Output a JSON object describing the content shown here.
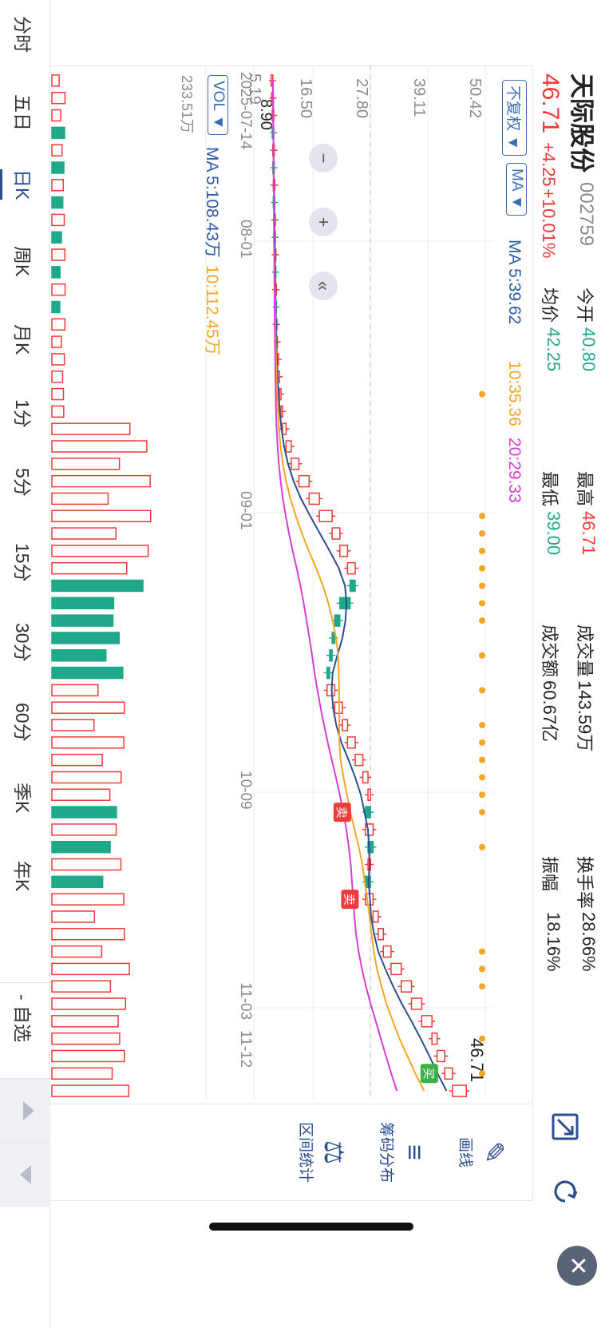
{
  "stock": {
    "name": "天际股份",
    "code": "002759",
    "price": "46.71",
    "change": "+4.25",
    "change_pct": "+10.01%"
  },
  "quote": {
    "open_label": "今开",
    "open_value": "40.80",
    "high_label": "最高",
    "high_value": "46.71",
    "volume_label": "成交量",
    "volume_value": "143.59万",
    "turnover_label": "换手率",
    "turnover_value": "28.66%",
    "avg_label": "均价",
    "avg_value": "42.25",
    "low_label": "最低",
    "low_value": "39.00",
    "amount_label": "成交额",
    "amount_value": "60.67亿",
    "amplitude_label": "振幅",
    "amplitude_value": "18.16%"
  },
  "toolbar": {
    "adjust_label": "不复权 ▼",
    "indicator_label": "MA ▼",
    "ma5": "MA 5:39.62",
    "ma10": "10:35.36",
    "ma20": "20:29.33"
  },
  "price_axis": {
    "top": "50.42",
    "l2": "39.11",
    "l3": "27.80",
    "l4": "16.50",
    "bottom": "5.19",
    "min_label": "8.90",
    "last_label": "46.71"
  },
  "date_axis": [
    "2025-07-14",
    "08-01",
    "09-01",
    "10-09",
    "11-03",
    "11-12"
  ],
  "volume_panel": {
    "indicator_label": "VOL ▼",
    "ma5": "MA 5:108.43万",
    "ma10": "10:112.45万",
    "max_label": "233.51万"
  },
  "markers": {
    "buy": "买",
    "sell": "卖"
  },
  "period_tabs": [
    "分时",
    "五日",
    "日K",
    "周K",
    "月K",
    "1分",
    "5分",
    "15分",
    "30分",
    "60分",
    "季K",
    "年K"
  ],
  "active_tab_index": 2,
  "watchlist_label": "- 自选",
  "side_tools": [
    {
      "label": "画线",
      "icon": "draw-line-icon"
    },
    {
      "label": "筹码分布",
      "icon": "chip-distribution-icon"
    },
    {
      "label": "区间统计",
      "icon": "range-stats-icon"
    }
  ],
  "colors": {
    "up": "#f03a3a",
    "down": "#1fa98a",
    "ma5": "#2c4f8f",
    "ma10": "#f5a623",
    "ma20": "#d63fd6",
    "accent": "#3b6db5"
  },
  "chart_data": {
    "type": "candlestick",
    "ylim": [
      5.19,
      50.42
    ],
    "dates": [
      "2025-07-14",
      "08-01",
      "09-01",
      "10-09",
      "11-03",
      "11-12"
    ],
    "close": [
      8.9,
      9.0,
      9.1,
      9.0,
      9.2,
      9.1,
      9.3,
      9.2,
      9.4,
      9.3,
      9.5,
      9.4,
      9.6,
      9.5,
      9.7,
      9.8,
      10.0,
      10.2,
      10.5,
      10.8,
      11.5,
      12.5,
      14.0,
      16.0,
      18.0,
      20.5,
      22.0,
      23.5,
      25.0,
      24.0,
      22.0,
      21.0,
      20.5,
      20.0,
      19.5,
      21.0,
      22.5,
      23.5,
      25.0,
      26.5,
      27.5,
      28.0,
      27.0,
      28.5,
      27.5,
      28.0,
      27.0,
      28.5,
      29.5,
      30.5,
      32.0,
      34.0,
      36.0,
      38.0,
      40.0,
      41.0,
      42.5,
      44.0,
      46.71
    ],
    "volume_max_label": "233.51万"
  }
}
